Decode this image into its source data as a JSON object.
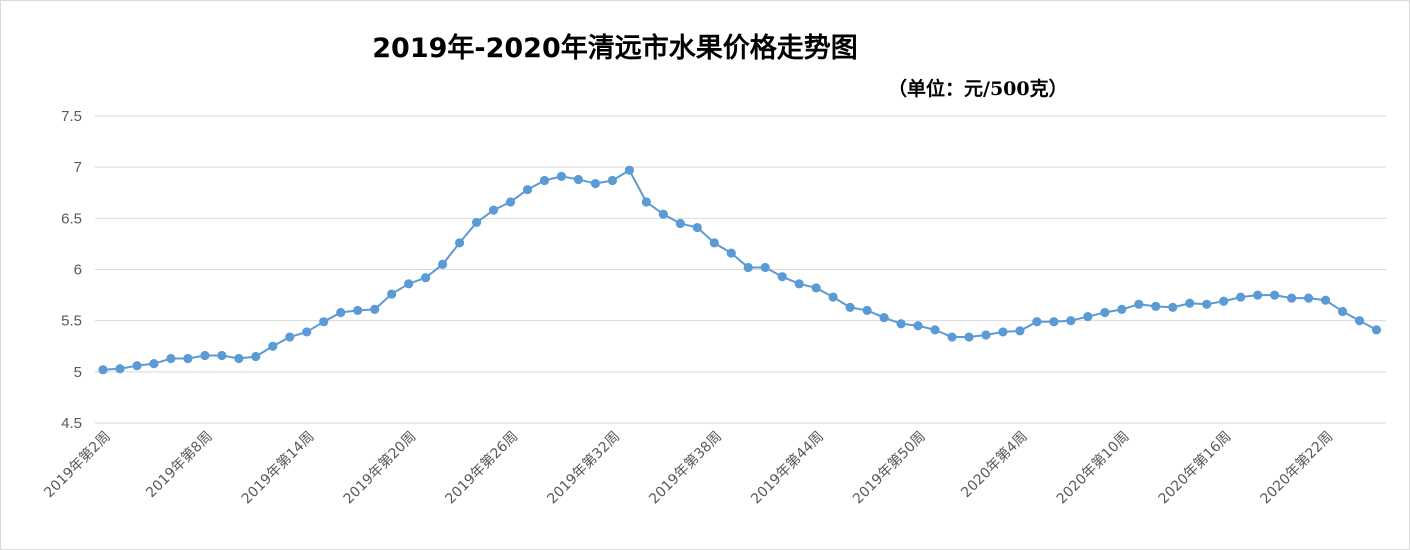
{
  "chart_data": {
    "type": "line",
    "title": "2019年-2020年清远市水果价格走势图",
    "subtitle": "（单位：元/500克）",
    "xlabel": "",
    "ylabel": "",
    "ylim": [
      4.5,
      7.5
    ],
    "yticks": [
      "4.5",
      "5",
      "5.5",
      "6",
      "6.5",
      "7",
      "7.5"
    ],
    "grid": true,
    "legend": "none",
    "line_color": "#5b9bd5",
    "xtick_labels": [
      {
        "index": 0,
        "label": "2019年第2周"
      },
      {
        "index": 6,
        "label": "2019年第8周"
      },
      {
        "index": 12,
        "label": "2019年第14周"
      },
      {
        "index": 18,
        "label": "2019年第20周"
      },
      {
        "index": 24,
        "label": "2019年第26周"
      },
      {
        "index": 30,
        "label": "2019年第32周"
      },
      {
        "index": 36,
        "label": "2019年第38周"
      },
      {
        "index": 42,
        "label": "2019年第44周"
      },
      {
        "index": 48,
        "label": "2019年第50周"
      },
      {
        "index": 54,
        "label": "2020年第4周"
      },
      {
        "index": 60,
        "label": "2020年第10周"
      },
      {
        "index": 66,
        "label": "2020年第16周"
      },
      {
        "index": 72,
        "label": "2020年第22周"
      }
    ],
    "series": [
      {
        "values": [
          5.02,
          5.03,
          5.06,
          5.08,
          5.13,
          5.13,
          5.16,
          5.16,
          5.13,
          5.15,
          5.25,
          5.34,
          5.39,
          5.49,
          5.58,
          5.6,
          5.61,
          5.76,
          5.86,
          5.92,
          6.05,
          6.26,
          6.46,
          6.58,
          6.66,
          6.78,
          6.87,
          6.91,
          6.88,
          6.84,
          6.87,
          6.97,
          6.66,
          6.54,
          6.45,
          6.41,
          6.26,
          6.16,
          6.02,
          6.02,
          5.93,
          5.86,
          5.82,
          5.73,
          5.63,
          5.6,
          5.53,
          5.47,
          5.45,
          5.41,
          5.34,
          5.34,
          5.36,
          5.39,
          5.4,
          5.49,
          5.49,
          5.5,
          5.54,
          5.58,
          5.61,
          5.66,
          5.64,
          5.63,
          5.67,
          5.66,
          5.69,
          5.73,
          5.75,
          5.75,
          5.72,
          5.72,
          5.7,
          5.59,
          5.5,
          5.41
        ]
      }
    ]
  }
}
